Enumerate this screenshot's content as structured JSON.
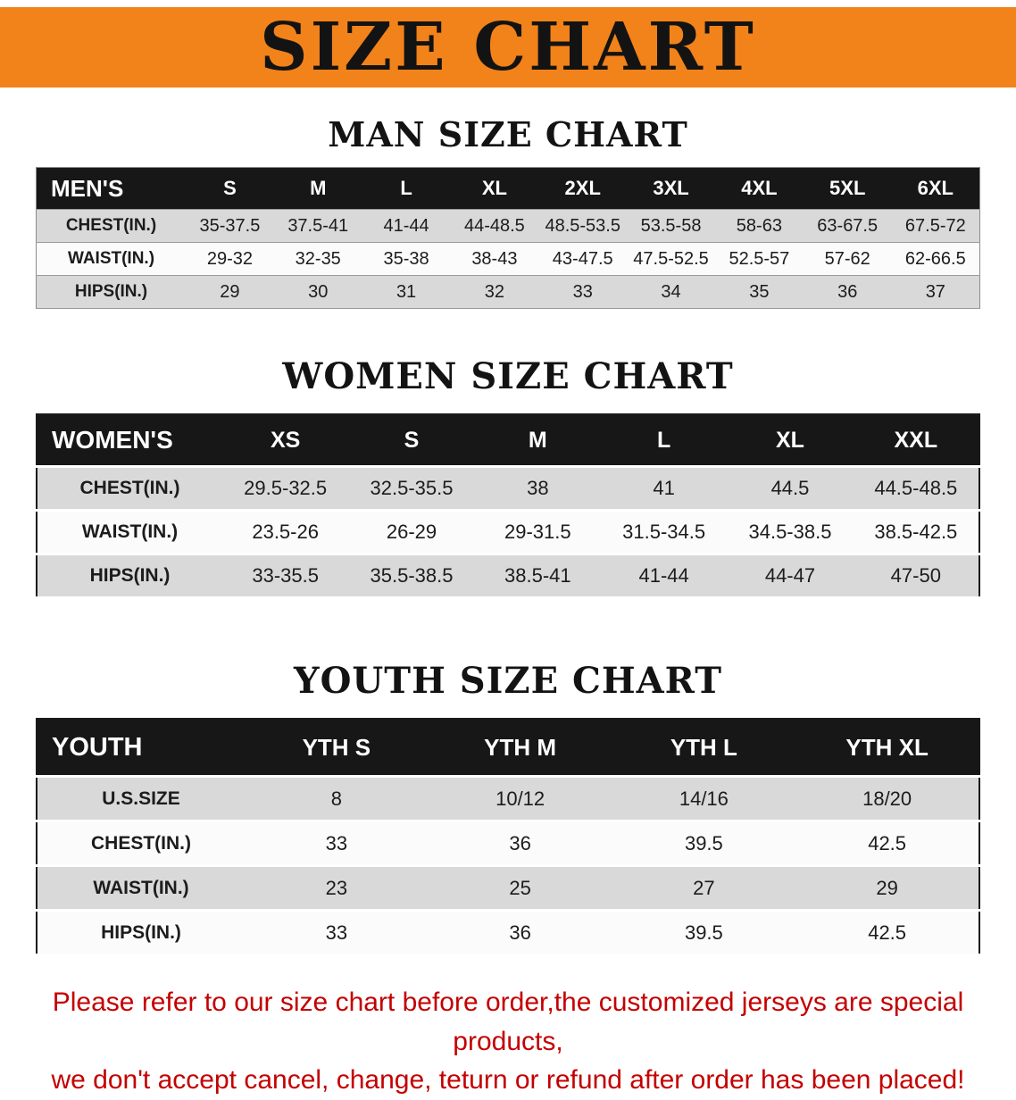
{
  "banner": {
    "title": "SIZE CHART",
    "bg_color": "#f2821a",
    "text_color": "#131313"
  },
  "sections": {
    "men": {
      "heading": "MAN SIZE CHART"
    },
    "women": {
      "heading": "WOMEN SIZE CHART"
    },
    "youth": {
      "heading": "YOUTH SIZE CHART"
    }
  },
  "tables": {
    "men": {
      "header": [
        "MEN'S",
        "S",
        "M",
        "L",
        "XL",
        "2XL",
        "3XL",
        "4XL",
        "5XL",
        "6XL"
      ],
      "rows": [
        [
          "CHEST(IN.)",
          "35-37.5",
          "37.5-41",
          "41-44",
          "44-48.5",
          "48.5-53.5",
          "53.5-58",
          "58-63",
          "63-67.5",
          "67.5-72"
        ],
        [
          "WAIST(IN.)",
          "29-32",
          "32-35",
          "35-38",
          "38-43",
          "43-47.5",
          "47.5-52.5",
          "52.5-57",
          "57-62",
          "62-66.5"
        ],
        [
          "HIPS(IN.)",
          "29",
          "30",
          "31",
          "32",
          "33",
          "34",
          "35",
          "36",
          "37"
        ]
      ]
    },
    "women": {
      "header": [
        "WOMEN'S",
        "XS",
        "S",
        "M",
        "L",
        "XL",
        "XXL"
      ],
      "rows": [
        [
          "CHEST(IN.)",
          "29.5-32.5",
          "32.5-35.5",
          "38",
          "41",
          "44.5",
          "44.5-48.5"
        ],
        [
          "WAIST(IN.)",
          "23.5-26",
          "26-29",
          "29-31.5",
          "31.5-34.5",
          "34.5-38.5",
          "38.5-42.5"
        ],
        [
          "HIPS(IN.)",
          "33-35.5",
          "35.5-38.5",
          "38.5-41",
          "41-44",
          "44-47",
          "47-50"
        ]
      ]
    },
    "youth": {
      "header": [
        "YOUTH",
        "YTH S",
        "YTH M",
        "YTH L",
        "YTH XL"
      ],
      "rows": [
        [
          "U.S.SIZE",
          "8",
          "10/12",
          "14/16",
          "18/20"
        ],
        [
          "CHEST(IN.)",
          "33",
          "36",
          "39.5",
          "42.5"
        ],
        [
          "WAIST(IN.)",
          "23",
          "25",
          "27",
          "29"
        ],
        [
          "HIPS(IN.)",
          "33",
          "36",
          "39.5",
          "42.5"
        ]
      ]
    }
  },
  "notice": {
    "line1": "Please refer to our size chart before order,the customized jerseys are special products,",
    "line2": "we don't accept cancel, change, teturn or refund after order has been placed!",
    "color": "#c40000"
  }
}
